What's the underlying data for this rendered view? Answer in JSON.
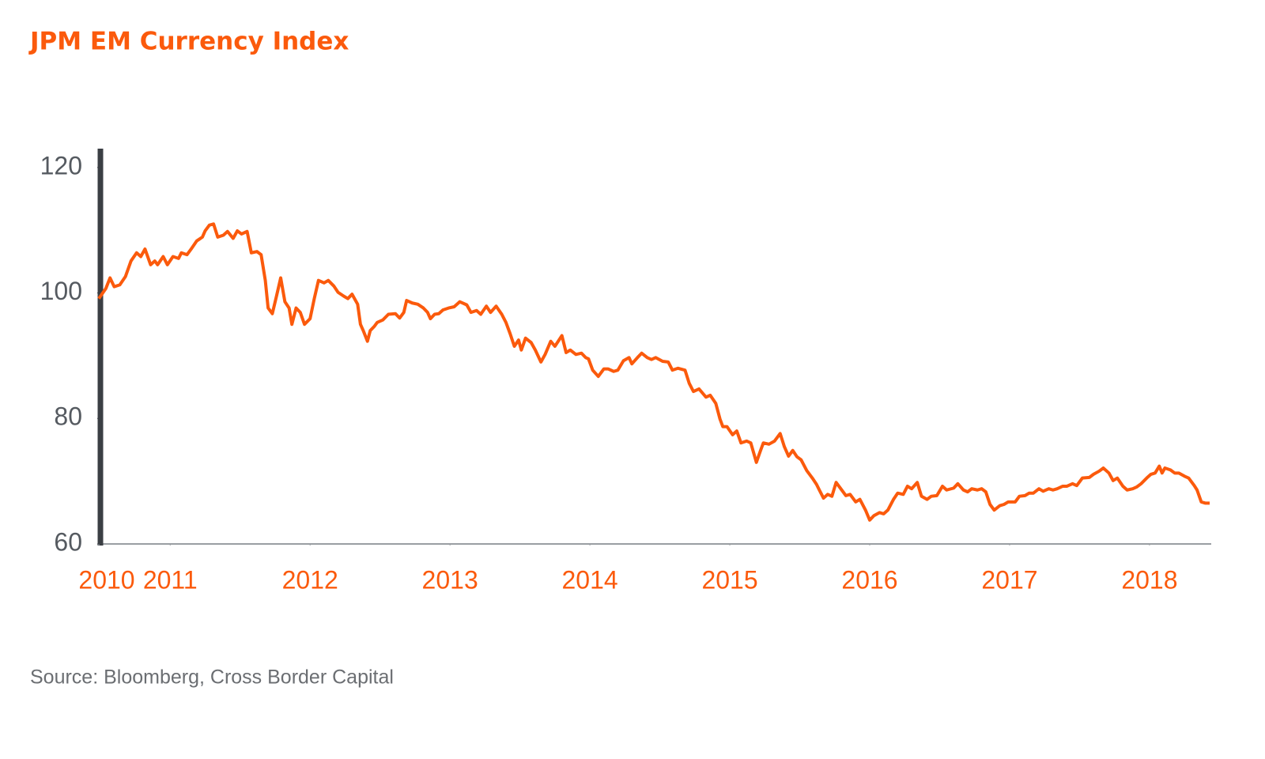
{
  "chart_data": {
    "type": "line",
    "title": "JPM EM Currency Index",
    "source": "Source: Bloomberg, Cross Border Capital",
    "color": "#fb5a0c",
    "xlim": [
      2010.49,
      2018.43
    ],
    "xticks": [
      {
        "value": 2010.49,
        "label": "2010"
      },
      2011,
      2012,
      2013,
      2014,
      2015,
      2016,
      2017,
      2018
    ],
    "ylim": [
      60,
      123
    ],
    "yticks": [
      60,
      80,
      100,
      120
    ],
    "grid": false,
    "x": [
      2010.49,
      2010.54,
      2010.57,
      2010.6,
      2010.64,
      2010.68,
      2010.72,
      2010.76,
      2010.79,
      2010.82,
      2010.86,
      2010.89,
      2010.91,
      2010.95,
      2010.98,
      2011.02,
      2011.06,
      2011.08,
      2011.12,
      2011.15,
      2011.19,
      2011.23,
      2011.25,
      2011.28,
      2011.31,
      2011.34,
      2011.38,
      2011.41,
      2011.45,
      2011.48,
      2011.51,
      2011.55,
      2011.58,
      2011.62,
      2011.65,
      2011.68,
      2011.7,
      2011.73,
      2011.76,
      2011.79,
      2011.82,
      2011.85,
      2011.87,
      2011.9,
      2011.93,
      2011.96,
      2012.0,
      2012.03,
      2012.06,
      2012.1,
      2012.13,
      2012.17,
      2012.2,
      2012.24,
      2012.27,
      2012.3,
      2012.34,
      2012.36,
      2012.38,
      2012.41,
      2012.43,
      2012.46,
      2012.48,
      2012.52,
      2012.56,
      2012.61,
      2012.64,
      2012.67,
      2012.69,
      2012.73,
      2012.77,
      2012.81,
      2012.84,
      2012.86,
      2012.89,
      2012.92,
      2012.95,
      2012.99,
      2013.03,
      2013.07,
      2013.12,
      2013.15,
      2013.19,
      2013.22,
      2013.26,
      2013.29,
      2013.33,
      2013.37,
      2013.4,
      2013.43,
      2013.46,
      2013.49,
      2013.51,
      2013.54,
      2013.58,
      2013.61,
      2013.65,
      2013.68,
      2013.72,
      2013.75,
      2013.8,
      2013.83,
      2013.86,
      2013.9,
      2013.94,
      2013.97,
      2013.99,
      2014.02,
      2014.06,
      2014.1,
      2014.13,
      2014.17,
      2014.2,
      2014.24,
      2014.28,
      2014.3,
      2014.34,
      2014.37,
      2014.41,
      2014.44,
      2014.47,
      2014.52,
      2014.56,
      2014.59,
      2014.63,
      2014.68,
      2014.71,
      2014.74,
      2014.78,
      2014.83,
      2014.86,
      2014.9,
      2014.93,
      2014.95,
      2014.98,
      2015.02,
      2015.05,
      2015.08,
      2015.12,
      2015.15,
      2015.19,
      2015.22,
      2015.24,
      2015.28,
      2015.32,
      2015.36,
      2015.39,
      2015.42,
      2015.45,
      2015.48,
      2015.51,
      2015.55,
      2015.59,
      2015.62,
      2015.64,
      2015.67,
      2015.7,
      2015.73,
      2015.76,
      2015.8,
      2015.83,
      2015.86,
      2015.9,
      2015.93,
      2015.97,
      2016.0,
      2016.03,
      2016.07,
      2016.1,
      2016.13,
      2016.17,
      2016.2,
      2016.24,
      2016.27,
      2016.3,
      2016.34,
      2016.37,
      2016.41,
      2016.44,
      2016.48,
      2016.52,
      2016.55,
      2016.6,
      2016.63,
      2016.67,
      2016.7,
      2016.73,
      2016.77,
      2016.8,
      2016.83,
      2016.86,
      2016.89,
      2016.93,
      2016.96,
      2016.99,
      2017.04,
      2017.07,
      2017.11,
      2017.14,
      2017.17,
      2017.21,
      2017.24,
      2017.28,
      2017.31,
      2017.34,
      2017.38,
      2017.41,
      2017.45,
      2017.48,
      2017.52,
      2017.57,
      2017.6,
      2017.64,
      2017.67,
      2017.71,
      2017.74,
      2017.77,
      2017.81,
      2017.84,
      2017.88,
      2017.91,
      2017.94,
      2017.98,
      2018.01,
      2018.04,
      2018.07,
      2018.09,
      2018.11,
      2018.15,
      2018.18,
      2018.21,
      2018.25,
      2018.28,
      2018.32,
      2018.34,
      2018.37,
      2018.4,
      2018.43
    ],
    "values": [
      99.1,
      100.7,
      102.4,
      101.0,
      101.3,
      102.6,
      105.1,
      106.4,
      105.8,
      107.0,
      104.5,
      105.1,
      104.5,
      105.8,
      104.5,
      105.8,
      105.5,
      106.4,
      106.1,
      107.0,
      108.3,
      108.9,
      109.9,
      110.8,
      111.0,
      108.9,
      109.2,
      109.8,
      108.7,
      109.9,
      109.4,
      109.8,
      106.4,
      106.6,
      106.1,
      102.0,
      97.6,
      96.7,
      99.5,
      102.4,
      98.6,
      97.6,
      95.0,
      97.6,
      96.9,
      95.0,
      95.9,
      99.1,
      102.0,
      101.6,
      102.0,
      101.1,
      100.1,
      99.5,
      99.1,
      99.8,
      98.2,
      95.0,
      94.0,
      92.3,
      94.0,
      94.7,
      95.3,
      95.7,
      96.6,
      96.7,
      96.0,
      96.9,
      98.8,
      98.4,
      98.2,
      97.6,
      96.9,
      95.9,
      96.6,
      96.7,
      97.3,
      97.6,
      97.8,
      98.6,
      98.1,
      96.9,
      97.2,
      96.6,
      97.9,
      96.9,
      97.9,
      96.6,
      95.3,
      93.5,
      91.5,
      92.5,
      90.9,
      92.8,
      92.1,
      90.9,
      89.0,
      90.2,
      92.3,
      91.5,
      93.2,
      90.5,
      90.9,
      90.2,
      90.4,
      89.7,
      89.5,
      87.7,
      86.7,
      87.9,
      87.9,
      87.5,
      87.7,
      89.2,
      89.7,
      88.7,
      89.7,
      90.4,
      89.7,
      89.4,
      89.7,
      89.1,
      89.0,
      87.7,
      88.0,
      87.7,
      85.6,
      84.3,
      84.7,
      83.4,
      83.7,
      82.4,
      79.9,
      78.7,
      78.7,
      77.4,
      78.0,
      76.1,
      76.4,
      76.1,
      73.0,
      74.9,
      76.1,
      75.9,
      76.4,
      77.6,
      75.5,
      74.0,
      74.9,
      73.9,
      73.4,
      71.7,
      70.5,
      69.5,
      68.6,
      67.3,
      67.9,
      67.6,
      69.8,
      68.6,
      67.7,
      67.9,
      66.7,
      67.1,
      65.4,
      63.8,
      64.5,
      65.0,
      64.8,
      65.4,
      67.1,
      68.1,
      67.9,
      69.2,
      68.8,
      69.8,
      67.6,
      67.1,
      67.6,
      67.7,
      69.2,
      68.6,
      68.9,
      69.6,
      68.6,
      68.3,
      68.8,
      68.6,
      68.8,
      68.3,
      66.3,
      65.4,
      66.1,
      66.3,
      66.7,
      66.7,
      67.6,
      67.7,
      68.1,
      68.1,
      68.8,
      68.4,
      68.8,
      68.6,
      68.8,
      69.2,
      69.2,
      69.6,
      69.3,
      70.5,
      70.6,
      71.1,
      71.6,
      72.1,
      71.3,
      70.1,
      70.5,
      69.2,
      68.6,
      68.8,
      69.1,
      69.6,
      70.5,
      71.1,
      71.3,
      72.4,
      71.3,
      72.1,
      71.8,
      71.3,
      71.3,
      70.8,
      70.5,
      69.3,
      68.6,
      66.7,
      66.5,
      66.5
    ]
  }
}
